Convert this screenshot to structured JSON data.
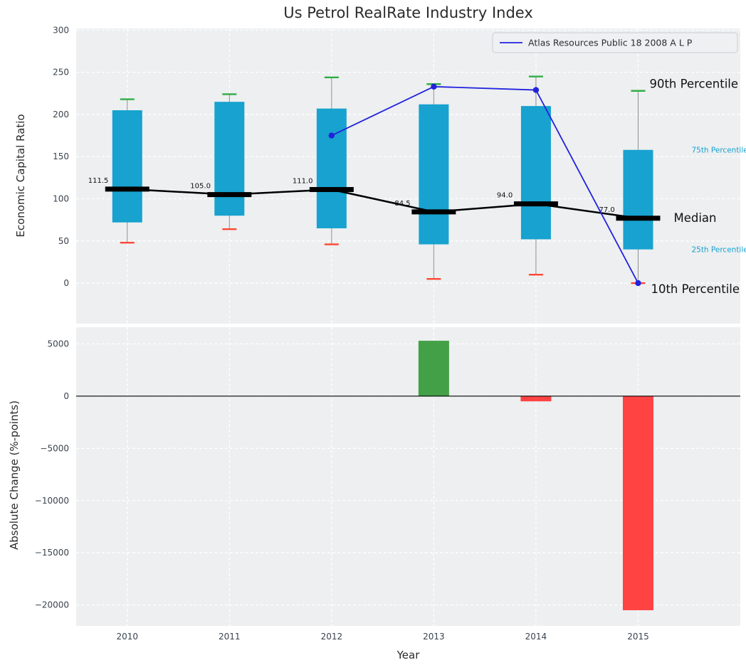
{
  "title": "Us Petrol RealRate Industry Index",
  "axes": {
    "top_ylabel": "Economic Capital Ratio",
    "bottom_ylabel": "Absolute Change (%-points)",
    "xlabel": "Year"
  },
  "legend": {
    "label": "Atlas Resources Public 18 2008 A L P"
  },
  "annotations": {
    "p90": "90th Percentile",
    "p75": "75th Percentile",
    "median": "Median",
    "p25": "25th Percentile",
    "p10": "10th Percentile"
  },
  "colors": {
    "panel_bg": "#edeff1",
    "grid": "#ffffff",
    "tick": "#39434e",
    "bar": "#17a2cf",
    "cap_green": "#2fae44",
    "cap_red": "#ff4633",
    "whisker": "#8f8f8f",
    "median": "#000000",
    "company": "#2222dd",
    "pos_bar": "#43a047",
    "neg_bar": "#ff4343",
    "zero_line": "#000000"
  },
  "chart_data": [
    {
      "type": "percentile-band",
      "title": "Us Petrol RealRate Industry Index",
      "ylabel": "Economic Capital Ratio",
      "categories": [
        "2010",
        "2011",
        "2012",
        "2013",
        "2014",
        "2015"
      ],
      "yticks": [
        0,
        50,
        100,
        150,
        200,
        250,
        300
      ],
      "ylim": [
        -48,
        302
      ],
      "grid": true,
      "legend_position": "upper right",
      "series": {
        "p90": [
          218,
          224,
          244,
          236,
          245,
          228
        ],
        "p75": [
          205,
          215,
          207,
          212,
          210,
          158
        ],
        "median": [
          111.5,
          105.0,
          111.0,
          84.5,
          94.0,
          77.0
        ],
        "p25": [
          72,
          80,
          65,
          46,
          52,
          40
        ],
        "p10": [
          48,
          64,
          46,
          5,
          10,
          0
        ]
      },
      "median_labels": [
        "111.5",
        "105.0",
        "111.0",
        "84.5",
        "94.0",
        "77.0"
      ],
      "company_series": {
        "name": "Atlas Resources Public 18 2008 A L P",
        "years": [
          "2012",
          "2013",
          "2014",
          "2015"
        ],
        "values": [
          175,
          233,
          229,
          0
        ]
      }
    },
    {
      "type": "bar",
      "ylabel": "Absolute Change (%-points)",
      "xlabel": "Year",
      "categories": [
        "2010",
        "2011",
        "2012",
        "2013",
        "2014",
        "2015"
      ],
      "values": [
        null,
        null,
        null,
        5300,
        -500,
        -20500
      ],
      "yticks": [
        5000,
        0,
        -5000,
        -10000,
        -15000,
        -20000
      ],
      "ytick_labels": [
        "5000",
        "0",
        "−5000",
        "−10000",
        "−15000",
        "−20000"
      ],
      "ylim": [
        -22000,
        6600
      ],
      "zero_line": true
    }
  ]
}
